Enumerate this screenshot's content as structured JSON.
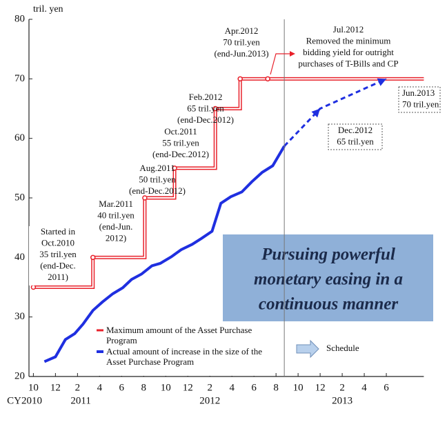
{
  "chart_data": {
    "type": "line",
    "y_unit_label": "tril. yen",
    "xlim": [
      9.6,
      45.4
    ],
    "ylim": [
      20,
      80
    ],
    "yticks": [
      20,
      30,
      40,
      50,
      60,
      70,
      80
    ],
    "xticks": [
      {
        "value": 10,
        "label": "10"
      },
      {
        "value": 12,
        "label": "12"
      },
      {
        "value": 14,
        "label": "2"
      },
      {
        "value": 16,
        "label": "4"
      },
      {
        "value": 18,
        "label": "6"
      },
      {
        "value": 20,
        "label": "8"
      },
      {
        "value": 22,
        "label": "10"
      },
      {
        "value": 24,
        "label": "12"
      },
      {
        "value": 26,
        "label": "2"
      },
      {
        "value": 28,
        "label": "4"
      },
      {
        "value": 30,
        "label": "6"
      },
      {
        "value": 32,
        "label": "8"
      },
      {
        "value": 34,
        "label": "10"
      },
      {
        "value": 36,
        "label": "12"
      },
      {
        "value": 38,
        "label": "2"
      },
      {
        "value": 40,
        "label": "4"
      },
      {
        "value": 42,
        "label": "6"
      }
    ],
    "year_labels": [
      {
        "value": 9.2,
        "label": "CY2010"
      },
      {
        "value": 14.3,
        "label": "2011"
      },
      {
        "value": 26,
        "label": "2012"
      },
      {
        "value": 38,
        "label": "2013"
      }
    ],
    "series": [
      {
        "name": "Maximum amount of the Asset Purchase Program",
        "color": "#e8202a",
        "step": true,
        "x": [
          10,
          15.4,
          20.1,
          22.8,
          26.5,
          28.75,
          31.25
        ],
        "values": [
          35,
          40,
          50,
          55,
          65,
          70,
          70
        ]
      },
      {
        "name": "Actual amount of increase in the size of the Asset Purchase Program",
        "color": "#1f2fe0",
        "x": [
          11,
          12,
          12.9,
          13.75,
          14.5,
          15.4,
          16.25,
          17.2,
          18.1,
          18.9,
          19.8,
          20.75,
          21.5,
          22.5,
          23.4,
          24.4,
          25.25,
          26.2,
          27,
          27.9,
          28.9,
          29.8,
          30.75,
          31.7,
          32.75
        ],
        "values": [
          22.5,
          23.3,
          26.2,
          27.2,
          28.8,
          31.1,
          32.5,
          33.9,
          34.9,
          36.3,
          37.2,
          38.6,
          39,
          40.1,
          41.3,
          42.2,
          43.2,
          44.4,
          49.1,
          50.2,
          51,
          52.7,
          54.3,
          55.4,
          58.7
        ]
      },
      {
        "name": "Schedule",
        "color": "#1f2fe0",
        "dashed": true,
        "x": [
          32.75,
          36,
          42
        ],
        "values": [
          58.7,
          65,
          70
        ]
      }
    ],
    "annotations": [
      [
        "Started in",
        "Oct.2010",
        "35 tril.yen",
        "(end-Dec.",
        "2011)"
      ],
      [
        "Mar.2011",
        "40 tril.yen",
        "(end-Jun.",
        "2012)"
      ],
      [
        "Aug.2011",
        "50 tril.yen",
        "(end-Dec.2012)"
      ],
      [
        "Oct.2011",
        "55 tril.yen",
        "(end-Dec.2012)"
      ],
      [
        "Feb.2012",
        "65 tril.yen",
        "(end-Dec.2012)"
      ],
      [
        "Apr.2012",
        "70 tril.yen",
        "(end-Jun.2013)"
      ],
      [
        "Jul.2012",
        "Removed the minimum",
        "bidding yield for outright",
        "purchases of T-Bills and CP"
      ],
      [
        "Jun.2013",
        "70 tril.yen"
      ],
      [
        "Dec.2012",
        "65 tril.yen"
      ]
    ],
    "callout": [
      "Pursuing powerful",
      "monetary easing in a",
      "continuous manner"
    ]
  }
}
